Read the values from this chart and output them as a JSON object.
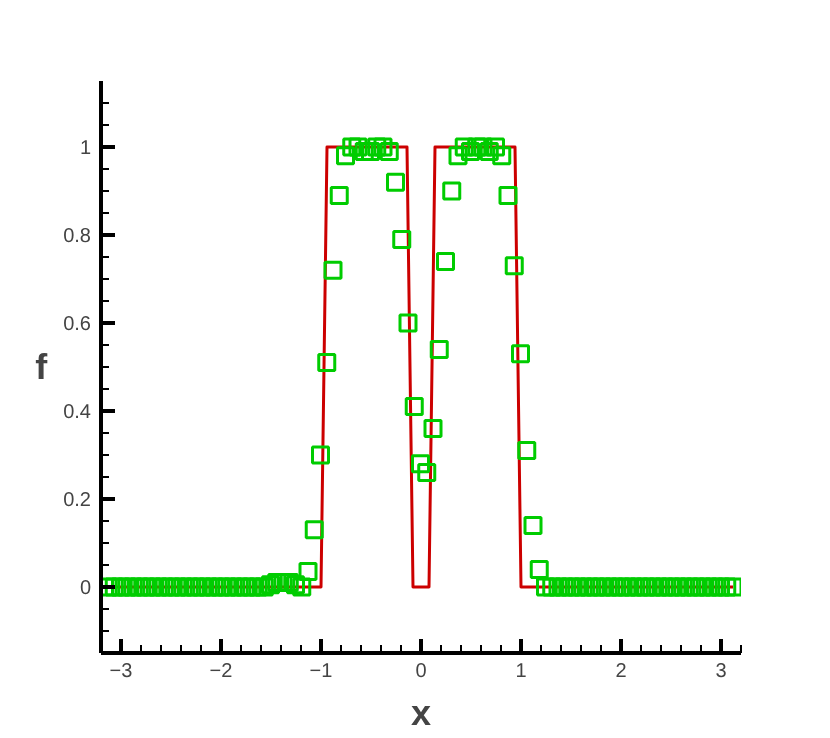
{
  "chart_data": {
    "type": "line",
    "xlabel": "x",
    "ylabel": "f",
    "xlim": [
      -3.2,
      3.2
    ],
    "ylim": [
      -0.15,
      1.15
    ],
    "xticks": [
      -3,
      -2,
      -1,
      0,
      1,
      2,
      3
    ],
    "yticks": [
      0,
      0.2,
      0.4,
      0.6,
      0.8,
      1
    ],
    "grid": false,
    "series": [
      {
        "color": "#cc0000",
        "x": [
          -3.13,
          -1.0,
          -0.94,
          -0.14,
          -0.08,
          0.08,
          0.14,
          0.94,
          1.0,
          3.12
        ],
        "values": [
          0,
          0,
          1,
          1,
          0,
          0,
          1,
          1,
          0,
          0
        ]
      },
      {
        "type": "scatter",
        "marker": "square",
        "color": "#00cc00",
        "x": [
          -3.13,
          -3.0675,
          -3.005,
          -2.9425,
          -2.88,
          -2.8175,
          -2.755,
          -2.6925,
          -2.63,
          -2.5675,
          -2.505,
          -2.4425,
          -2.38,
          -2.3175,
          -2.255,
          -2.1925,
          -2.13,
          -2.0675,
          -2.005,
          -1.9425,
          -1.88,
          -1.8175,
          -1.755,
          -1.6925,
          -1.63,
          -1.5675,
          -1.505,
          -1.4425,
          -1.38,
          -1.3175,
          -1.255,
          -1.1925,
          -1.13,
          -1.0675,
          -1.005,
          -0.9425,
          -0.88,
          -0.8175,
          -0.755,
          -0.6925,
          -0.63,
          -0.5675,
          -0.505,
          -0.4425,
          -0.38,
          -0.3175,
          -0.255,
          -0.1925,
          -0.13,
          -0.0675,
          -0.005,
          0.0575,
          0.12,
          0.1825,
          0.245,
          0.3075,
          0.37,
          0.4325,
          0.495,
          0.5575,
          0.62,
          0.6825,
          0.745,
          0.8075,
          0.87,
          0.9325,
          0.995,
          1.0575,
          1.12,
          1.1825,
          1.245,
          1.3075,
          1.37,
          1.4325,
          1.495,
          1.5575,
          1.62,
          1.6825,
          1.745,
          1.8075,
          1.87,
          1.9325,
          1.995,
          2.0575,
          2.12,
          2.1825,
          2.245,
          2.3075,
          2.37,
          2.4325,
          2.495,
          2.5575,
          2.62,
          2.6825,
          2.745,
          2.8075,
          2.87,
          2.9325,
          2.995,
          3.0575,
          3.12
        ],
        "values": [
          0,
          0,
          0,
          0,
          0,
          0,
          0,
          0,
          0,
          0,
          0,
          0,
          0,
          0,
          0,
          0,
          0,
          0,
          0,
          0,
          0,
          0,
          0,
          0,
          0,
          0,
          0.005,
          0.01,
          0.01,
          0.01,
          0.005,
          0,
          0.035,
          0.13,
          0.3,
          0.51,
          0.72,
          0.89,
          0.98,
          1.0,
          1.0,
          0.99,
          0.99,
          1.0,
          1.0,
          0.99,
          0.92,
          0.79,
          0.6,
          0.41,
          0.28,
          0.26,
          0.36,
          0.54,
          0.74,
          0.9,
          0.98,
          1.0,
          0.99,
          1.0,
          1.0,
          0.99,
          1.0,
          0.98,
          0.89,
          0.73,
          0.53,
          0.31,
          0.14,
          0.04,
          0,
          0,
          0,
          0,
          0,
          0,
          0,
          0,
          0,
          0,
          0,
          0,
          0,
          0,
          0,
          0,
          0,
          0,
          0,
          0,
          0,
          0,
          0,
          0,
          0,
          0,
          0,
          0,
          0,
          0,
          0
        ]
      }
    ]
  }
}
